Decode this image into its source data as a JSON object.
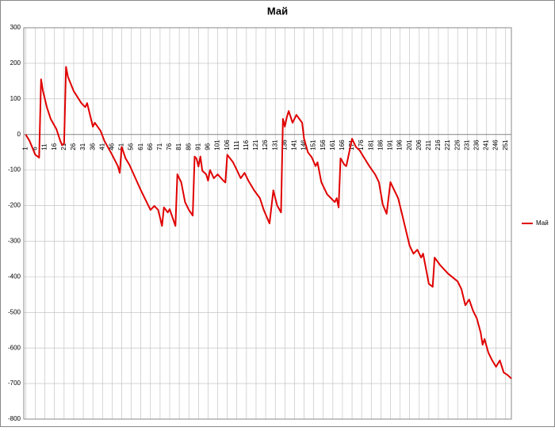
{
  "chart_data": {
    "type": "line",
    "title": "Май",
    "x": [
      1,
      3,
      6,
      8,
      9,
      10,
      12,
      14,
      17,
      19,
      20,
      21,
      22,
      23,
      26,
      30,
      32,
      33,
      36,
      37,
      40,
      42,
      46,
      49,
      50,
      51,
      53,
      55,
      61,
      66,
      68,
      70,
      72,
      73,
      75,
      76,
      79,
      80,
      82,
      84,
      86,
      88,
      89,
      90,
      91,
      92,
      93,
      95,
      96,
      97,
      99,
      101,
      104,
      105,
      106,
      109,
      111,
      113,
      115,
      117,
      120,
      123,
      125,
      128,
      130,
      132,
      134,
      135,
      136,
      137,
      138,
      140,
      142,
      145,
      146,
      148,
      150,
      152,
      153,
      155,
      158,
      160,
      162,
      163,
      164,
      165,
      167,
      168,
      171,
      173,
      175,
      177,
      180,
      183,
      185,
      187,
      189,
      191,
      193,
      195,
      197,
      199,
      201,
      203,
      205,
      207,
      208,
      210,
      211,
      213,
      214,
      217,
      221,
      226,
      228,
      230,
      232,
      234,
      236,
      238,
      239,
      240,
      242,
      244,
      246,
      248,
      250,
      252,
      254
    ],
    "series": [
      {
        "name": "Май",
        "color": "#e00000",
        "values": [
          0,
          -18,
          -57,
          -65,
          155,
          122,
          77,
          44,
          15,
          -18,
          -30,
          -25,
          190,
          162,
          122,
          88,
          77,
          88,
          22,
          33,
          10,
          -18,
          -57,
          -89,
          -108,
          -35,
          -67,
          -85,
          -157,
          -212,
          -201,
          -212,
          -257,
          -205,
          -219,
          -210,
          -257,
          -112,
          -134,
          -190,
          -212,
          -228,
          -62,
          -68,
          -90,
          -62,
          -102,
          -112,
          -130,
          -100,
          -123,
          -112,
          -130,
          -135,
          -57,
          -78,
          -100,
          -123,
          -108,
          -130,
          -157,
          -179,
          -212,
          -250,
          -157,
          -200,
          -219,
          44,
          22,
          48,
          66,
          33,
          55,
          33,
          -12,
          -50,
          -64,
          -89,
          -78,
          -134,
          -168,
          -179,
          -190,
          -179,
          -205,
          -67,
          -85,
          -89,
          -12,
          -35,
          -45,
          -63,
          -89,
          -112,
          -134,
          -197,
          -223,
          -134,
          -157,
          -179,
          -223,
          -268,
          -313,
          -335,
          -324,
          -346,
          -335,
          -391,
          -420,
          -428,
          -346,
          -368,
          -391,
          -413,
          -435,
          -480,
          -464,
          -495,
          -517,
          -557,
          -591,
          -575,
          -613,
          -635,
          -653,
          -635,
          -669,
          -676,
          -686
        ]
      }
    ],
    "xlim": [
      0,
      254
    ],
    "xticks": [
      1,
      6,
      11,
      16,
      21,
      26,
      31,
      36,
      41,
      46,
      51,
      56,
      61,
      66,
      71,
      76,
      81,
      86,
      91,
      96,
      101,
      106,
      111,
      116,
      121,
      126,
      131,
      136,
      141,
      146,
      151,
      156,
      161,
      166,
      171,
      176,
      181,
      186,
      191,
      196,
      201,
      206,
      211,
      216,
      221,
      226,
      231,
      236,
      241,
      246,
      251
    ],
    "ylim": [
      -800,
      300
    ],
    "yticks": [
      -800,
      -700,
      -600,
      -500,
      -400,
      -300,
      -200,
      -100,
      0,
      100,
      200,
      300
    ],
    "grid": true,
    "legend": "right"
  }
}
